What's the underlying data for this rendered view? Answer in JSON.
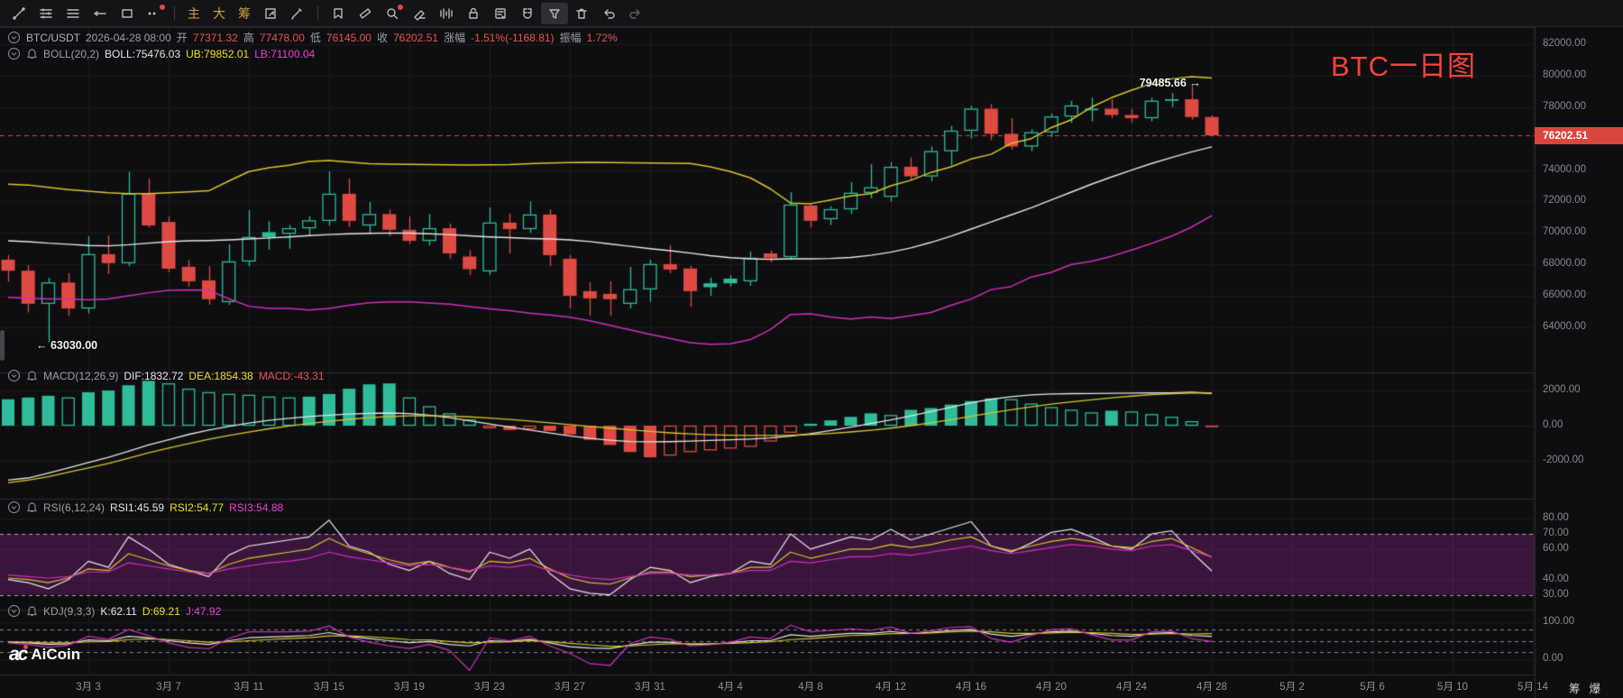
{
  "toolbar": {
    "tabs": [
      "主",
      "大",
      "筹"
    ],
    "icons": [
      "trend-line-icon",
      "indicator-list-icon",
      "lines-icon",
      "horizontal-ray-icon",
      "rectangle-icon",
      "more-drawings-icon",
      "pane-layout-icon",
      "brush-icon",
      "bookmark-icon",
      "ruler-icon",
      "zoom-icon",
      "eraser-icon",
      "waveband-icon",
      "lock-icon",
      "order-note-icon",
      "magnet-icon",
      "filter-icon",
      "trash-icon",
      "undo-icon",
      "redo-icon"
    ]
  },
  "main_legend": {
    "symbol": "BTC/USDT",
    "time": "2026-04-28 08:00",
    "o_label": "开",
    "o": "77371.32",
    "h_label": "高",
    "h": "77478.00",
    "l_label": "低",
    "l": "76145.00",
    "c_label": "收",
    "c": "76202.51",
    "chg_label": "涨幅",
    "chg": "-1.51%(-1168.81)",
    "amp_label": "振幅",
    "amp": "1.72%"
  },
  "boll_legend": {
    "name": "BOLL(20,2)",
    "mid": "BOLL:75476.03",
    "ub": "UB:79852.01",
    "lb": "LB:71100.04"
  },
  "macd_legend": {
    "name": "MACD(12,26,9)",
    "dif": "DIF:1832.72",
    "dea": "DEA:1854.38",
    "macd": "MACD:-43.31"
  },
  "rsi_legend": {
    "name": "RSI(6,12,24)",
    "r1": "RSI1:45.59",
    "r2": "RSI2:54.77",
    "r3": "RSI3:54.88"
  },
  "kdj_legend": {
    "name": "KDJ(9,3,3)",
    "k": "K:62.11",
    "d": "D:69.21",
    "j": "J:47.92"
  },
  "annotations": {
    "low": "← 63030.00",
    "high": "79485.66 →",
    "title": "BTC一日图"
  },
  "price_badge": "76202.51",
  "watermark": {
    "mark": "ac",
    "name": "AiCoin"
  },
  "corner": {
    "chip": "筹",
    "burst": "爆"
  },
  "colors": {
    "up": "#2fbc9a",
    "down": "#df4a42",
    "badge": "#d8463e",
    "ub": "#d9c62b",
    "mid": "#e6e6e8",
    "lb": "#d12ec0",
    "band": "rgba(196,44,196,0.24)"
  },
  "axes": {
    "main_labels": [
      "82000.00",
      "80000.00",
      "78000.00",
      "74000.00",
      "72000.00",
      "70000.00",
      "68000.00",
      "66000.00",
      "64000.00"
    ],
    "main_values": [
      82000,
      80000,
      78000,
      74000,
      72000,
      70000,
      68000,
      66000,
      64000
    ],
    "macd_labels": [
      "2000.00",
      "0.00",
      "-2000.00"
    ],
    "macd_values": [
      2000,
      0,
      -2000
    ],
    "rsi_labels": [
      "80.00",
      "70.00",
      "60.00",
      "40.00",
      "30.00"
    ],
    "rsi_values": [
      80,
      70,
      60,
      40,
      30
    ],
    "kdj_labels": [
      "100.00",
      "0.00"
    ],
    "kdj_values": [
      100,
      0
    ],
    "time": [
      "3月 3",
      "3月 7",
      "3月 11",
      "3月 15",
      "3月 19",
      "3月 23",
      "3月 27",
      "3月 31",
      "4月 4",
      "4月 8",
      "4月 12",
      "4月 16",
      "4月 20",
      "4月 24",
      "4月 28",
      "5月 2",
      "5月 6",
      "5月 10",
      "5月 14"
    ]
  },
  "chart_data": {
    "type": "candlestick",
    "symbol": "BTC/USDT",
    "interval": "1D",
    "start_date": "2026-02-27",
    "end_date": "2026-04-28",
    "last_price": 76202.51,
    "marked_low": 63030.0,
    "marked_high": 79485.66,
    "candles": {
      "open": [
        68300,
        67600,
        65500,
        66850,
        65200,
        68650,
        68080,
        72500,
        70700,
        67850,
        66990,
        65610,
        68190,
        69740,
        69950,
        70300,
        70770,
        72490,
        70480,
        71200,
        70200,
        69500,
        70300,
        68500,
        67560,
        70660,
        70250,
        71170,
        68360,
        66300,
        66130,
        65500,
        66420,
        68020,
        67740,
        66550,
        66800,
        66930,
        68700,
        68470,
        71740,
        70880,
        71510,
        72550,
        72300,
        74210,
        73600,
        75200,
        76500,
        77900,
        76300,
        75500,
        76400,
        77400,
        77800,
        77900,
        77500,
        77300,
        78400,
        78500,
        77371.32
      ],
      "high": [
        68600,
        67950,
        67150,
        67450,
        69800,
        69850,
        73900,
        73450,
        71050,
        68300,
        67900,
        69280,
        71450,
        70740,
        70500,
        71050,
        73920,
        73460,
        71970,
        71500,
        71050,
        71200,
        70600,
        68900,
        71620,
        71230,
        72000,
        71500,
        68600,
        66870,
        66930,
        67850,
        68300,
        69220,
        67900,
        67160,
        67300,
        68820,
        68880,
        72600,
        71900,
        71700,
        73230,
        74380,
        74500,
        74800,
        75500,
        76800,
        78100,
        78200,
        77300,
        76600,
        77600,
        78400,
        78600,
        78500,
        77900,
        78600,
        78900,
        79485.66,
        77478.0
      ],
      "low": [
        66900,
        64950,
        63030,
        64750,
        64900,
        67400,
        67900,
        70350,
        67500,
        66590,
        65440,
        65440,
        67900,
        68940,
        69000,
        69850,
        70480,
        70370,
        69970,
        69800,
        69300,
        69200,
        68360,
        67330,
        67330,
        68700,
        70000,
        67900,
        65200,
        64750,
        64750,
        65200,
        65610,
        67440,
        65320,
        66010,
        66600,
        66640,
        68130,
        68300,
        70360,
        70500,
        71200,
        72200,
        72000,
        73400,
        73300,
        74300,
        76000,
        75900,
        75300,
        75200,
        76100,
        77000,
        77100,
        77300,
        77000,
        77100,
        78000,
        77200,
        76145.0
      ],
      "close": [
        67600,
        65500,
        66850,
        65200,
        68650,
        68080,
        72500,
        70480,
        67730,
        66930,
        65790,
        68190,
        69740,
        70050,
        70300,
        70800,
        72490,
        70770,
        71200,
        70200,
        69500,
        70300,
        68700,
        67700,
        70660,
        70250,
        71170,
        68590,
        66010,
        65840,
        65790,
        66420,
        68020,
        67670,
        66300,
        66800,
        67100,
        68420,
        68420,
        71800,
        70770,
        71510,
        72550,
        72900,
        74200,
        73600,
        75200,
        76500,
        77900,
        76300,
        75500,
        76400,
        77400,
        78100,
        77900,
        77500,
        77300,
        78400,
        78500,
        77371.32,
        76202.51
      ]
    },
    "boll": {
      "ub": [
        73100,
        73050,
        72900,
        72750,
        72650,
        72550,
        72500,
        72500,
        72550,
        72620,
        72680,
        73300,
        73900,
        74150,
        74300,
        74550,
        74600,
        74500,
        74400,
        74380,
        74360,
        74350,
        74330,
        74320,
        74330,
        74340,
        74400,
        74450,
        74480,
        74490,
        74470,
        74460,
        74450,
        74440,
        74420,
        74200,
        73900,
        73500,
        72800,
        71900,
        71860,
        72100,
        72350,
        72500,
        73000,
        73350,
        73850,
        74200,
        74700,
        75000,
        75700,
        76000,
        76700,
        77200,
        78000,
        78600,
        79080,
        79500,
        79800,
        79940,
        79852.01
      ],
      "mid": [
        69500,
        69450,
        69350,
        69280,
        69200,
        69180,
        69250,
        69350,
        69450,
        69500,
        69520,
        69560,
        69620,
        69680,
        69750,
        69830,
        69900,
        69950,
        69980,
        70000,
        69990,
        69950,
        69900,
        69820,
        69750,
        69700,
        69650,
        69620,
        69560,
        69450,
        69300,
        69150,
        69000,
        68870,
        68720,
        68560,
        68430,
        68360,
        68330,
        68360,
        68360,
        68380,
        68440,
        68580,
        68780,
        69050,
        69400,
        69800,
        70250,
        70700,
        71150,
        71600,
        72100,
        72600,
        73100,
        73560,
        74000,
        74420,
        74800,
        75160,
        75476.03
      ]
    },
    "macd": {
      "hist": [
        1500,
        1600,
        1700,
        1600,
        1900,
        2000,
        2300,
        2550,
        2400,
        2100,
        1900,
        1800,
        1750,
        1650,
        1600,
        1650,
        1800,
        2100,
        2350,
        2400,
        1600,
        1100,
        700,
        350,
        -150,
        -250,
        -200,
        -300,
        -500,
        -800,
        -1100,
        -1500,
        -1800,
        -1700,
        -1500,
        -1400,
        -1300,
        -1200,
        -900,
        -400,
        100,
        300,
        500,
        700,
        600,
        900,
        1000,
        1200,
        1400,
        1550,
        1500,
        1250,
        1050,
        900,
        750,
        850,
        800,
        650,
        500,
        250,
        -43.31
      ],
      "dif": [
        -3100,
        -2975,
        -2700,
        -2400,
        -2100,
        -1800,
        -1450,
        -1100,
        -800,
        -500,
        -250,
        -50,
        150,
        300,
        420,
        520,
        600,
        660,
        700,
        718,
        690,
        600,
        450,
        280,
        100,
        -80,
        -250,
        -420,
        -580,
        -720,
        -830,
        -900,
        -920,
        -910,
        -880,
        -840,
        -800,
        -760,
        -700,
        -600,
        -450,
        -280,
        -80,
        120,
        330,
        560,
        800,
        1050,
        1300,
        1500,
        1650,
        1750,
        1800,
        1820,
        1830,
        1840,
        1850,
        1860,
        1870,
        1900,
        1832.72
      ],
      "dea": [
        -3250,
        -3100,
        -2900,
        -2650,
        -2400,
        -2150,
        -1850,
        -1550,
        -1280,
        -1020,
        -780,
        -560,
        -360,
        -180,
        -20,
        120,
        250,
        360,
        450,
        520,
        560,
        570,
        550,
        500,
        430,
        350,
        260,
        160,
        60,
        -40,
        -140,
        -240,
        -330,
        -410,
        -470,
        -520,
        -550,
        -560,
        -560,
        -540,
        -500,
        -440,
        -360,
        -260,
        -140,
        0,
        160,
        340,
        530,
        720,
        900,
        1070,
        1220,
        1350,
        1470,
        1580,
        1680,
        1760,
        1820,
        1850,
        1854.38
      ]
    },
    "rsi": {
      "r1": [
        40,
        38,
        34,
        40,
        52,
        48,
        68,
        60,
        50,
        46,
        42,
        56,
        62,
        64,
        66,
        68,
        79,
        62,
        58,
        50,
        46,
        52,
        44,
        40,
        58,
        54,
        60,
        44,
        34,
        31,
        30,
        40,
        48,
        46,
        38,
        42,
        44,
        52,
        50,
        70,
        60,
        64,
        68,
        66,
        73,
        66,
        70,
        74,
        78,
        62,
        58,
        64,
        71,
        73,
        68,
        62,
        60,
        70,
        72,
        58,
        45.59
      ],
      "r2": [
        41,
        40,
        38,
        41,
        47,
        46,
        57,
        53,
        49,
        46,
        44,
        50,
        54,
        56,
        58,
        60,
        67,
        61,
        57,
        53,
        50,
        52,
        48,
        45,
        52,
        51,
        54,
        47,
        41,
        38,
        37,
        41,
        45,
        45,
        42,
        43,
        44,
        48,
        48,
        58,
        54,
        57,
        60,
        60,
        63,
        61,
        63,
        66,
        68,
        62,
        59,
        62,
        65,
        67,
        65,
        62,
        61,
        65,
        67,
        61,
        54.77
      ],
      "r3": [
        43,
        42,
        41,
        42,
        45,
        45,
        51,
        49,
        47,
        45,
        44,
        47,
        49,
        51,
        52,
        54,
        58,
        55,
        53,
        51,
        49,
        50,
        48,
        46,
        49,
        48,
        50,
        46,
        43,
        41,
        40,
        42,
        44,
        44,
        43,
        43,
        44,
        46,
        46,
        52,
        51,
        53,
        55,
        55,
        57,
        56,
        58,
        60,
        62,
        59,
        57,
        59,
        61,
        63,
        62,
        60,
        59,
        62,
        63,
        59,
        54.88
      ]
    },
    "kdj": {
      "k": [
        46,
        44,
        40,
        42,
        52,
        50,
        62,
        58,
        50,
        44,
        40,
        50,
        58,
        60,
        62,
        64,
        72,
        62,
        56,
        50,
        45,
        48,
        40,
        36,
        50,
        48,
        54,
        44,
        34,
        30,
        29,
        38,
        46,
        46,
        40,
        41,
        44,
        50,
        50,
        66,
        62,
        66,
        70,
        70,
        75,
        70,
        73,
        78,
        80,
        68,
        62,
        68,
        74,
        76,
        70,
        64,
        62,
        70,
        72,
        64,
        62.11
      ],
      "d": [
        47,
        46,
        44,
        44,
        47,
        48,
        53,
        55,
        53,
        50,
        46,
        47,
        50,
        53,
        56,
        58,
        63,
        63,
        61,
        57,
        53,
        52,
        48,
        44,
        46,
        47,
        50,
        48,
        43,
        39,
        35,
        36,
        39,
        42,
        42,
        42,
        43,
        45,
        47,
        53,
        56,
        60,
        64,
        66,
        69,
        70,
        71,
        74,
        76,
        74,
        70,
        70,
        71,
        73,
        72,
        70,
        67,
        68,
        70,
        68,
        69.21
      ],
      "j": [
        44,
        40,
        32,
        38,
        62,
        54,
        80,
        64,
        44,
        32,
        28,
        56,
        74,
        74,
        74,
        76,
        90,
        60,
        46,
        36,
        29,
        40,
        24,
        -30,
        58,
        50,
        62,
        36,
        16,
        -12,
        -17,
        42,
        60,
        54,
        36,
        39,
        46,
        60,
        56,
        92,
        74,
        78,
        82,
        78,
        87,
        70,
        77,
        86,
        88,
        56,
        46,
        64,
        80,
        82,
        66,
        52,
        52,
        74,
        76,
        56,
        47.92
      ]
    }
  }
}
